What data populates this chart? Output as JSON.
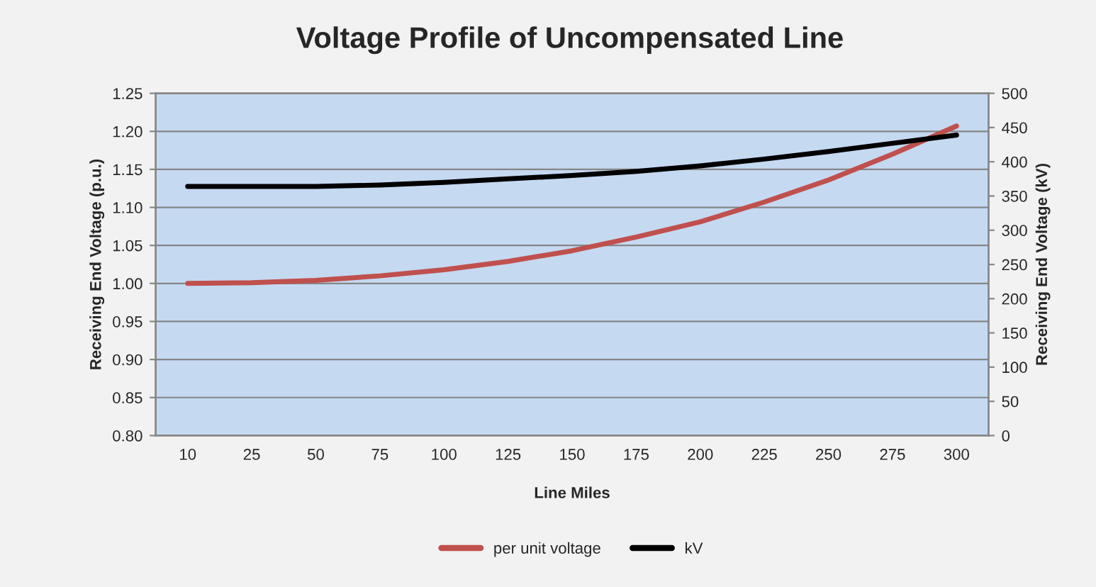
{
  "chart_data": {
    "type": "line",
    "title": "Voltage Profile of Uncompensated Line",
    "xlabel": "Line Miles",
    "ylabel": "Receiving End Voltage (p.u.)",
    "y2label": "Receiving End Voltage (kV)",
    "categories": [
      "10",
      "25",
      "50",
      "75",
      "100",
      "125",
      "150",
      "175",
      "200",
      "225",
      "250",
      "275",
      "300"
    ],
    "series": [
      {
        "name": "per unit voltage",
        "color": "#c0504d",
        "values": [
          1.0,
          1.001,
          1.004,
          1.01,
          1.018,
          1.029,
          1.043,
          1.061,
          1.081,
          1.107,
          1.136,
          1.17,
          1.207
        ]
      },
      {
        "name": "kV",
        "color": "#000000",
        "axis": "y2",
        "values": [
          364,
          364,
          364,
          366,
          370,
          375,
          380,
          386,
          394,
          404,
          415,
          427,
          439
        ]
      }
    ],
    "ylim": [
      0.8,
      1.25
    ],
    "yticks": [
      {
        "value": 0.8,
        "label": "0.80"
      },
      {
        "value": 0.85,
        "label": "0.85"
      },
      {
        "value": 0.9,
        "label": "0.90"
      },
      {
        "value": 0.95,
        "label": "0.95"
      },
      {
        "value": 1.0,
        "label": "1.00"
      },
      {
        "value": 1.05,
        "label": "1.05"
      },
      {
        "value": 1.1,
        "label": "1.10"
      },
      {
        "value": 1.15,
        "label": "1.15"
      },
      {
        "value": 1.2,
        "label": "1.20"
      },
      {
        "value": 1.25,
        "label": "1.25"
      }
    ],
    "y2lim": [
      0,
      500
    ],
    "y2ticks": [
      0,
      50,
      100,
      150,
      200,
      250,
      300,
      350,
      400,
      450,
      500
    ],
    "grid": "y",
    "legend": "bottom",
    "marker": "none",
    "line_style": "solid"
  }
}
